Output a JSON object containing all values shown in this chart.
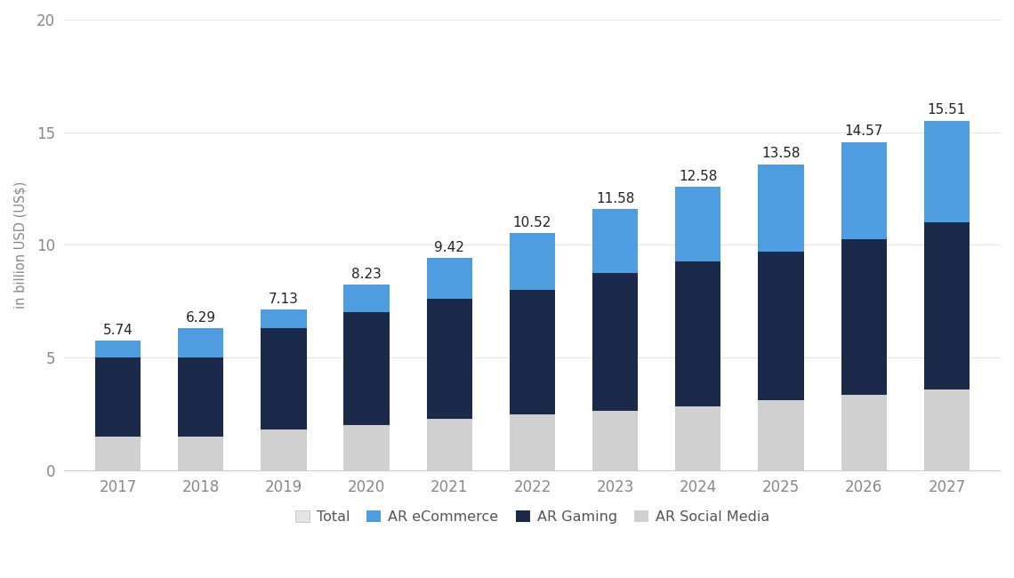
{
  "years": [
    "2017",
    "2018",
    "2019",
    "2020",
    "2021",
    "2022",
    "2023",
    "2024",
    "2025",
    "2026",
    "2027"
  ],
  "totals": [
    5.74,
    6.29,
    7.13,
    8.23,
    9.42,
    10.52,
    11.58,
    12.58,
    13.58,
    14.57,
    15.51
  ],
  "ar_social_media": [
    1.5,
    1.5,
    1.8,
    2.0,
    2.3,
    2.5,
    2.65,
    2.85,
    3.1,
    3.35,
    3.6
  ],
  "ar_gaming": [
    3.5,
    3.5,
    4.5,
    5.0,
    5.3,
    5.5,
    6.1,
    6.4,
    6.6,
    6.9,
    7.4
  ],
  "ar_ecommerce": [
    0.74,
    1.29,
    0.83,
    1.23,
    1.82,
    2.52,
    2.83,
    3.33,
    3.88,
    4.32,
    4.51
  ],
  "color_social_media": "#d0d0d0",
  "color_gaming": "#1b2a4a",
  "color_ecommerce": "#4d9de0",
  "color_total_legend": "#e4e4e4",
  "background_color": "#ffffff",
  "ylabel": "in billion USD (US$)",
  "ylim": [
    0,
    20
  ],
  "yticks": [
    0,
    5,
    10,
    15,
    20
  ],
  "legend_labels": [
    "Total",
    "AR eCommerce",
    "AR Gaming",
    "AR Social Media"
  ],
  "bar_width": 0.55,
  "grid_color": "#e5e5e5",
  "annotation_color": "#222222",
  "annotation_fontsize": 11
}
